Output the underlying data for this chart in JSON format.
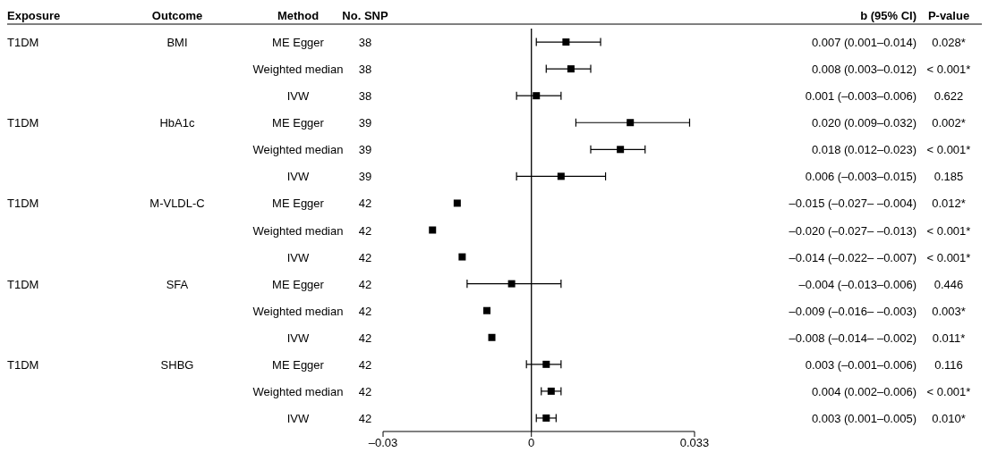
{
  "chart_data": {
    "type": "scatter",
    "orientation": "horizontal",
    "marker": "square",
    "grid": false,
    "categories": [
      "ME Egger",
      "Weighted median",
      "IVW",
      "ME Egger",
      "Weighted median",
      "IVW",
      "ME Egger",
      "Weighted median",
      "IVW",
      "ME Egger",
      "Weighted median",
      "IVW",
      "ME Egger",
      "Weighted median",
      "IVW"
    ],
    "color": "#000000",
    "values": [
      0.007,
      0.008,
      0.001,
      0.02,
      0.018,
      0.006,
      -0.015,
      -0.02,
      -0.014,
      -0.004,
      -0.009,
      -0.008,
      0.003,
      0.004,
      0.003
    ],
    "errors": [
      [
        0.001,
        0.014
      ],
      [
        0.003,
        0.012
      ],
      [
        -0.003,
        0.006
      ],
      [
        0.009,
        0.032
      ],
      [
        0.012,
        0.023
      ],
      [
        -0.003,
        0.015
      ],
      null,
      null,
      null,
      [
        -0.013,
        0.006
      ],
      null,
      null,
      [
        -0.001,
        0.006
      ],
      [
        0.002,
        0.006
      ],
      [
        0.001,
        0.005
      ]
    ],
    "value_labels": [
      "0.007 (0.001–0.014)",
      "0.008 (0.003–0.012)",
      "0.001 (–0.003–0.006)",
      "0.020 (0.009–0.032)",
      "0.018 (0.012–0.023)",
      "0.006 (–0.003–0.015)",
      "–0.015 (–0.027– –0.004)",
      "–0.020 (–0.027– –0.013)",
      "–0.014 (–0.022– –0.007)",
      "–0.004 (–0.013–0.006)",
      "–0.009 (–0.016– –0.003)",
      "–0.008 (–0.014– –0.002)",
      "0.003 (–0.001–0.006)",
      "0.004 (0.002–0.006)",
      "0.003 (0.001–0.005)"
    ],
    "xlim": [
      -0.03,
      0.033
    ],
    "xticks": [
      {
        "value": -0.03,
        "label": "–0.03"
      },
      0,
      0.033
    ],
    "ref_lines": [
      {
        "axis": "x",
        "value": 0
      }
    ],
    "annotations": [
      "Exposure",
      "Outcome",
      "Method",
      "No. SNP",
      "b (95% CI)",
      "P-value",
      "38",
      "38",
      "38",
      "39",
      "39",
      "39",
      "42",
      "42",
      "42",
      "42",
      "42",
      "42",
      "42",
      "42",
      "42",
      "0.028*",
      "< 0.001*",
      "0.622",
      "0.002*",
      "< 0.001*",
      "0.185",
      "0.012*",
      "< 0.001*",
      "< 0.001*",
      "0.446",
      "0.003*",
      "0.011*",
      "0.116",
      "< 0.001*",
      "0.010*",
      "T1DM",
      "BMI",
      "T1DM",
      "HbA1c",
      "T1DM",
      "M-VLDL-C",
      "T1DM",
      "SFA",
      "T1DM",
      "SHBG"
    ]
  }
}
